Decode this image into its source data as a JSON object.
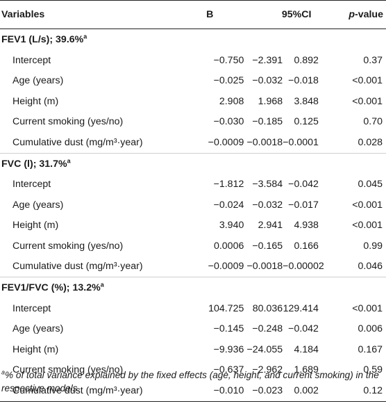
{
  "headers": {
    "variables": "Variables",
    "b": "B",
    "ci": "95%CI",
    "p_prefix": "p",
    "p_suffix": "-value"
  },
  "sections": [
    {
      "title": "FEV1 (L/s); 39.6%",
      "title_sup": "a",
      "rows": [
        {
          "label": "Intercept",
          "b": "−0.750",
          "ci_low": "−2.391",
          "ci_high": "0.892",
          "p": "0.37"
        },
        {
          "label": "Age (years)",
          "b": "−0.025",
          "ci_low": "−0.032",
          "ci_high": "−0.018",
          "p": "<0.001"
        },
        {
          "label": "Height (m)",
          "b": "2.908",
          "ci_low": "1.968",
          "ci_high": "3.848",
          "p": "<0.001"
        },
        {
          "label": "Current smoking (yes/no)",
          "b": "−0.030",
          "ci_low": "−0.185",
          "ci_high": "0.125",
          "p": "0.70"
        },
        {
          "label": "Cumulative dust (mg/m³·year)",
          "b": "−0.0009",
          "ci_low": "−0.0018",
          "ci_high": "−0.0001",
          "p": "0.028"
        }
      ]
    },
    {
      "title": "FVC (l); 31.7%",
      "title_sup": "a",
      "rows": [
        {
          "label": "Intercept",
          "b": "−1.812",
          "ci_low": "−3.584",
          "ci_high": "−0.042",
          "p": "0.045"
        },
        {
          "label": "Age (years)",
          "b": "−0.024",
          "ci_low": "−0.032",
          "ci_high": "−0.017",
          "p": "<0.001"
        },
        {
          "label": "Height (m)",
          "b": "3.940",
          "ci_low": "2.941",
          "ci_high": "4.938",
          "p": "<0.001"
        },
        {
          "label": "Current smoking (yes/no)",
          "b": "0.0006",
          "ci_low": "−0.165",
          "ci_high": "0.166",
          "p": "0.99"
        },
        {
          "label": "Cumulative dust (mg/m³·year)",
          "b": "−0.0009",
          "ci_low": "−0.0018",
          "ci_high": "−0.00002",
          "p": "0.046"
        }
      ]
    },
    {
      "title": "FEV1/FVC (%); 13.2%",
      "title_sup": "a",
      "rows": [
        {
          "label": "Intercept",
          "b": "104.725",
          "ci_low": "80.036",
          "ci_high": "129.414",
          "p": "<0.001"
        },
        {
          "label": "Age (years)",
          "b": "−0.145",
          "ci_low": "−0.248",
          "ci_high": "−0.042",
          "p": "0.006"
        },
        {
          "label": "Height (m)",
          "b": "−9.936",
          "ci_low": "−24.055",
          "ci_high": "4.184",
          "p": "0.167"
        },
        {
          "label": "Current smoking (yes/no)",
          "b": "−0.637",
          "ci_low": "−2.962",
          "ci_high": "1.689",
          "p": "0.59"
        },
        {
          "label": "Cumulative dust (mg/m³·year)",
          "b": "−0.010",
          "ci_low": "−0.023",
          "ci_high": "0.002",
          "p": "0.12"
        }
      ]
    }
  ],
  "footnote": {
    "marker": "a",
    "text": "% of total variance explained by the fixed effects (age, height, and current smoking) in the respective models."
  }
}
